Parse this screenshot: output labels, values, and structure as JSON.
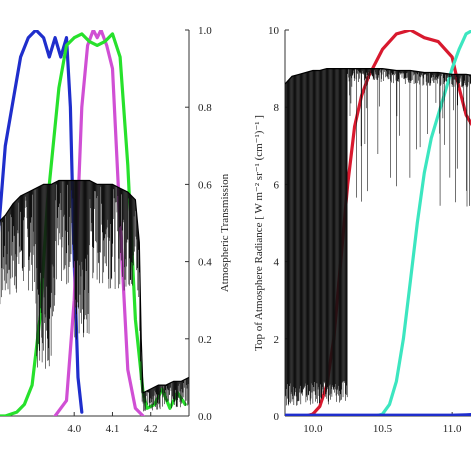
{
  "chart_data": [
    {
      "type": "line",
      "title": "",
      "xlabel": "",
      "ylabel": "Atmospheric Transmission",
      "ylabel_side": "right",
      "xlim": [
        3.78,
        4.3
      ],
      "ylim": [
        0,
        1.0
      ],
      "xticks": [
        "4.0",
        "4.1",
        "4.2"
      ],
      "yticks": [
        "0.0",
        "0.2",
        "0.4",
        "0.6",
        "0.8",
        "1.0"
      ],
      "grid": false,
      "legend": "none",
      "series": [
        {
          "color": "#1f2ecc",
          "kind": "filter response",
          "x": [
            3.78,
            3.82,
            3.86,
            3.88,
            3.9,
            3.92,
            3.935,
            3.95,
            3.965,
            3.98,
            3.99,
            4.0,
            4.01,
            4.02
          ],
          "y": [
            0.2,
            0.7,
            0.93,
            0.98,
            1.0,
            0.98,
            0.93,
            0.98,
            0.93,
            0.98,
            0.8,
            0.4,
            0.1,
            0.01
          ]
        },
        {
          "color": "#d04fd4",
          "kind": "filter response",
          "x": [
            3.95,
            3.98,
            4.0,
            4.02,
            4.035,
            4.05,
            4.06,
            4.07,
            4.085,
            4.1,
            4.12,
            4.14,
            4.16,
            4.18
          ],
          "y": [
            0.0,
            0.04,
            0.3,
            0.8,
            0.96,
            1.0,
            0.98,
            1.0,
            0.96,
            0.9,
            0.5,
            0.12,
            0.02,
            0.0
          ]
        },
        {
          "color": "#27e12c",
          "kind": "filter response",
          "x": [
            3.8,
            3.82,
            3.85,
            3.87,
            3.89,
            3.91,
            3.93,
            3.96,
            3.98,
            4.0,
            4.02,
            4.04,
            4.06,
            4.08,
            4.1,
            4.12,
            4.14,
            4.16,
            4.18,
            4.19,
            4.21,
            4.23,
            4.25,
            4.27,
            4.29
          ],
          "y": [
            0.0,
            0.0,
            0.01,
            0.03,
            0.08,
            0.25,
            0.55,
            0.85,
            0.96,
            0.98,
            0.99,
            0.97,
            0.96,
            0.97,
            0.99,
            0.93,
            0.65,
            0.25,
            0.06,
            0.02,
            0.03,
            0.07,
            0.02,
            0.06,
            0.03
          ]
        },
        {
          "color": "#000000",
          "kind": "atmospheric transmission",
          "x": [
            3.78,
            3.8,
            3.82,
            3.84,
            3.86,
            3.88,
            3.9,
            3.92,
            3.94,
            3.96,
            3.98,
            4.0,
            4.02,
            4.04,
            4.06,
            4.08,
            4.1,
            4.12,
            4.14,
            4.16,
            4.17,
            4.175,
            4.18,
            4.2,
            4.22,
            4.24,
            4.26,
            4.28,
            4.3
          ],
          "y": [
            0.44,
            0.5,
            0.52,
            0.55,
            0.57,
            0.58,
            0.59,
            0.6,
            0.6,
            0.61,
            0.61,
            0.61,
            0.61,
            0.61,
            0.6,
            0.6,
            0.6,
            0.59,
            0.58,
            0.56,
            0.45,
            0.2,
            0.06,
            0.07,
            0.08,
            0.08,
            0.09,
            0.09,
            0.1
          ]
        }
      ]
    },
    {
      "type": "line",
      "title": "",
      "xlabel": "",
      "ylabel": "Top of Atmosphere Radiance  [ W m⁻² sr⁻¹ (cm⁻¹)⁻¹ ]",
      "ylabel_side": "left",
      "xlim": [
        9.8,
        11.2
      ],
      "ylim": [
        0,
        10
      ],
      "xticks": [
        "10.0",
        "10.5",
        "11.0"
      ],
      "yticks": [
        "0",
        "2",
        "4",
        "6",
        "8",
        "10"
      ],
      "grid": false,
      "legend": "none",
      "series": [
        {
          "color": "#d8192e",
          "kind": "filter response",
          "x": [
            9.8,
            9.95,
            10.0,
            10.05,
            10.1,
            10.15,
            10.2,
            10.25,
            10.3,
            10.35,
            10.4,
            10.5,
            10.6,
            10.7,
            10.8,
            10.9,
            11.0,
            11.05,
            11.1,
            11.15,
            11.2
          ],
          "y": [
            0.0,
            0.0,
            0.05,
            0.25,
            0.8,
            2.0,
            4.0,
            6.0,
            7.5,
            8.3,
            8.8,
            9.5,
            9.9,
            10.0,
            9.8,
            9.7,
            9.3,
            8.5,
            7.8,
            7.5,
            7.4
          ]
        },
        {
          "color": "#3ce6c0",
          "kind": "filter response",
          "x": [
            10.45,
            10.5,
            10.55,
            10.6,
            10.65,
            10.7,
            10.75,
            10.8,
            10.85,
            10.9,
            10.95,
            11.0,
            11.05,
            11.1,
            11.15,
            11.2
          ],
          "y": [
            0.0,
            0.05,
            0.3,
            0.9,
            2.0,
            3.5,
            5.0,
            6.3,
            7.2,
            7.8,
            8.4,
            9.0,
            9.5,
            9.9,
            10.0,
            10.0
          ]
        },
        {
          "color": "#1f2ecc",
          "kind": "filter response",
          "x": [
            9.8,
            10.0,
            10.5,
            11.0,
            11.1,
            11.2
          ],
          "y": [
            0.02,
            0.02,
            0.02,
            0.02,
            0.03,
            0.05
          ]
        },
        {
          "color": "#000000",
          "kind": "radiance",
          "x": [
            9.8,
            9.85,
            9.9,
            9.95,
            10.0,
            10.05,
            10.1,
            10.15,
            10.2,
            10.25,
            10.3,
            10.4,
            10.5,
            10.6,
            10.7,
            10.8,
            10.9,
            11.0,
            11.1,
            11.2
          ],
          "y": [
            8.6,
            8.8,
            8.85,
            8.9,
            8.95,
            8.95,
            9.0,
            9.0,
            9.0,
            9.0,
            9.0,
            9.0,
            9.0,
            8.95,
            8.95,
            8.9,
            8.9,
            8.85,
            8.85,
            8.8
          ]
        }
      ]
    }
  ]
}
